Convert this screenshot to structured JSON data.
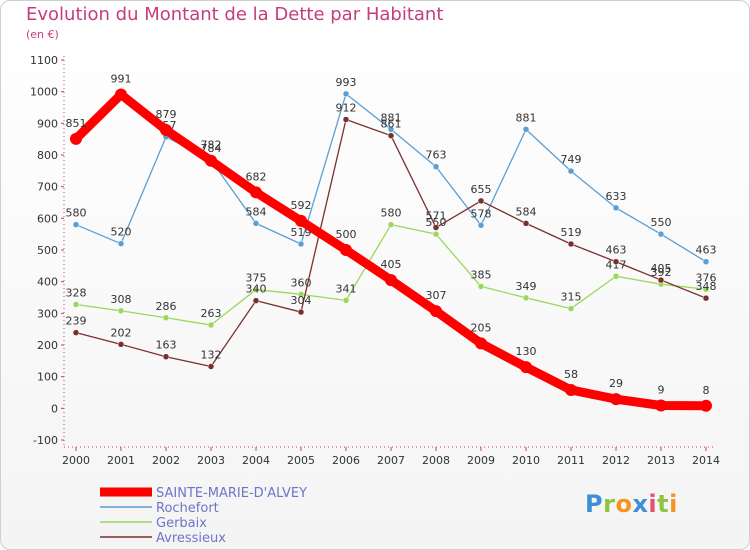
{
  "title": "Evolution du Montant de la Dette par Habitant",
  "subtitle": "(en €)",
  "logo": [
    "P",
    "r",
    "o",
    "x",
    "i",
    "t",
    "i"
  ],
  "logo_colors": [
    "#3d8fd6",
    "#8cc63f",
    "#f7931e",
    "#3d8fd6",
    "#e94e77",
    "#8cc63f",
    "#f7931e"
  ],
  "chart_data": {
    "type": "line",
    "x": [
      2000,
      2001,
      2002,
      2003,
      2004,
      2005,
      2006,
      2007,
      2008,
      2009,
      2010,
      2011,
      2012,
      2013,
      2014
    ],
    "ylim": [
      -100,
      1100
    ],
    "yticks": [
      -100,
      0,
      100,
      200,
      300,
      400,
      500,
      600,
      700,
      800,
      900,
      1000,
      1100
    ],
    "grid": false,
    "legend_position": "bottom-left",
    "series": [
      {
        "name": "Rochefort",
        "color": "#5b9fd4",
        "values": [
          580,
          520,
          857,
          784,
          584,
          519,
          993,
          881,
          763,
          578,
          881,
          749,
          633,
          550,
          463
        ],
        "labels": [
          "580",
          "520",
          "857",
          "784",
          "584",
          "519",
          "993",
          "881",
          "763",
          "578",
          "881",
          "749",
          "633",
          "550",
          "463"
        ]
      },
      {
        "name": "Gerbaix",
        "color": "#9ad85b",
        "values": [
          328,
          308,
          286,
          263,
          375,
          360,
          341,
          580,
          550,
          385,
          349,
          315,
          417,
          392,
          376
        ],
        "labels": [
          "328",
          "308",
          "286",
          "263",
          "375",
          "360",
          "341",
          "580",
          "550",
          "385",
          "349",
          "315",
          "417",
          "392",
          "376"
        ]
      },
      {
        "name": "Avressieux",
        "color": "#7a2f2f",
        "values": [
          239,
          202,
          163,
          132,
          340,
          304,
          912,
          861,
          571,
          655,
          584,
          519,
          463,
          405,
          348
        ],
        "labels": [
          "239",
          "202",
          "163",
          "132",
          "340",
          "304",
          "912",
          "861",
          "571",
          "655",
          "584",
          "519",
          "463",
          "405",
          "348"
        ]
      },
      {
        "name": "SAINTE-MARIE-D'ALVEY",
        "color": "#ff0000",
        "values": [
          851,
          991,
          879,
          782,
          682,
          592,
          500,
          405,
          307,
          205,
          130,
          58,
          29,
          9,
          8
        ],
        "labels": [
          "851",
          "991",
          "879",
          "782",
          "682",
          "592",
          "500",
          "405",
          "307",
          "205",
          "130",
          "58",
          "29",
          "9",
          "8"
        ]
      }
    ],
    "legend": [
      "SAINTE-MARIE-D'ALVEY",
      "Rochefort",
      "Gerbaix",
      "Avressieux"
    ]
  }
}
